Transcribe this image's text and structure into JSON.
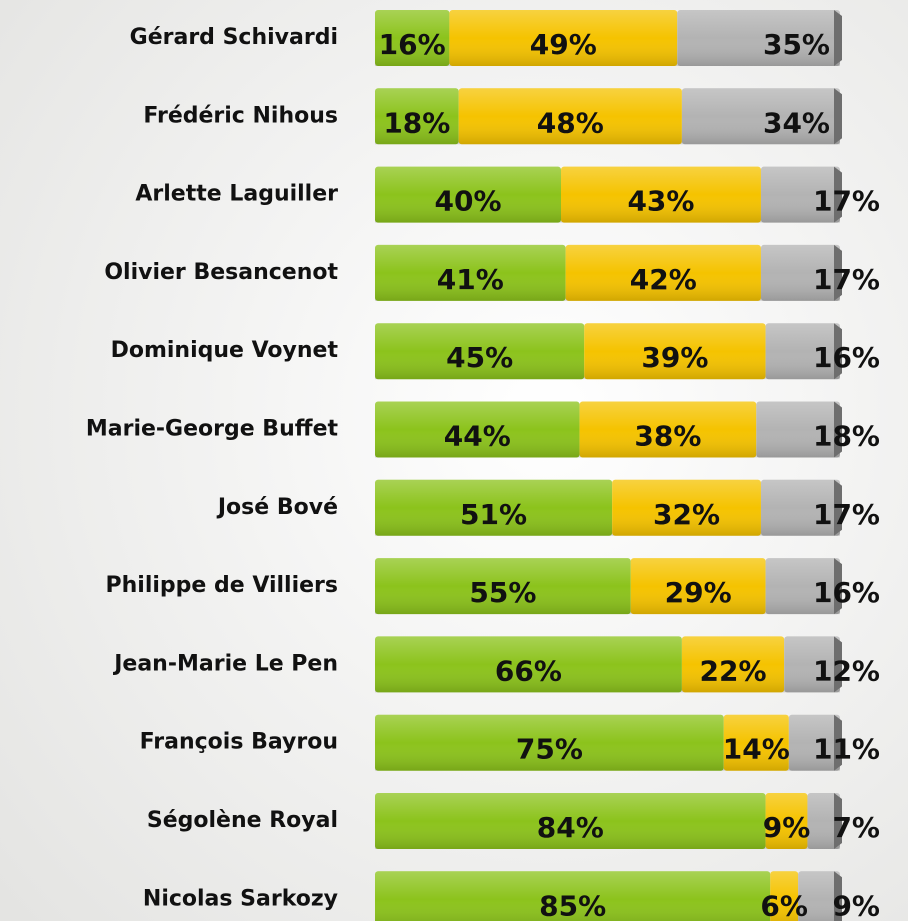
{
  "chart_data": {
    "type": "stacked-barh",
    "categories": [
      "Gérard Schivardi",
      "Frédéric Nihous",
      "Arlette Laguiller",
      "Olivier Besancenot",
      "Dominique Voynet",
      "Marie-George Buffet",
      "José Bové",
      "Philippe de Villiers",
      "Jean-Marie Le Pen",
      "François Bayrou",
      "Ségolène Royal",
      "Nicolas Sarkozy"
    ],
    "xlim": [
      0,
      100
    ],
    "series": [
      {
        "color": "#8cc31c",
        "values": [
          16,
          18,
          40,
          41,
          45,
          44,
          51,
          55,
          66,
          75,
          84,
          85
        ],
        "value_labels": [
          "16%",
          "18%",
          "40%",
          "41%",
          "45%",
          "44%",
          "51%",
          "55%",
          "66%",
          "75%",
          "84%",
          "85%"
        ]
      },
      {
        "color": "#f5c300",
        "values": [
          49,
          48,
          43,
          42,
          39,
          38,
          32,
          29,
          22,
          14,
          9,
          6
        ],
        "value_labels": [
          "49%",
          "48%",
          "43%",
          "42%",
          "39%",
          "38%",
          "32%",
          "29%",
          "22%",
          "14%",
          "9%",
          "6%"
        ]
      },
      {
        "color": "#b3b3b3",
        "values": [
          35,
          34,
          17,
          17,
          16,
          18,
          17,
          16,
          12,
          11,
          7,
          9
        ],
        "value_labels": [
          "35%",
          "34%",
          "17%",
          "17%",
          "16%",
          "18%",
          "17%",
          "16%",
          "12%",
          "11%",
          "7%",
          "9%"
        ]
      }
    ]
  }
}
